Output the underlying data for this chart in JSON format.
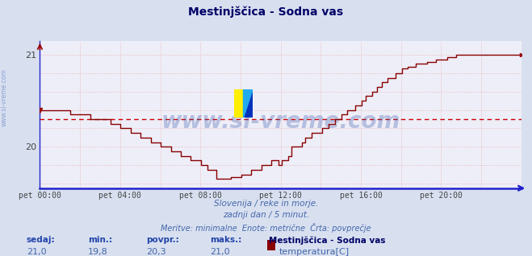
{
  "title": "Mestinjščica - Sodna vas",
  "subtitle1": "Slovenija / reke in morje.",
  "subtitle2": "zadnji dan / 5 minut.",
  "subtitle3": "Meritve: minimalne  Enote: metrične  Črta: povprečje",
  "legend_station": "Mestinjščica - Sodna vas",
  "legend_param": "temperatura[C]",
  "label_sedaj": "sedaj:",
  "label_min": "min.:",
  "label_povpr": "povpr.:",
  "label_maks": "maks.:",
  "val_sedaj": "21,0",
  "val_min": "19,8",
  "val_povpr": "20,3",
  "val_maks": "21,0",
  "avg_value": 20.3,
  "y_min": 19.55,
  "y_max": 21.15,
  "y_ticks": [
    20,
    21
  ],
  "x_ticks": [
    0,
    4,
    8,
    12,
    16,
    20
  ],
  "x_labels": [
    "pet 00:00",
    "pet 04:00",
    "pet 08:00",
    "pet 12:00",
    "pet 16:00",
    "pet 20:00"
  ],
  "line_color": "#880000",
  "avg_line_color": "#cc0000",
  "grid_color": "#e8b0b0",
  "bg_color": "#d8e0f0",
  "plot_bg_color": "#eeeef8",
  "axis_color": "#2222cc",
  "title_color": "#000066",
  "subtitle_color": "#4466aa",
  "label_color": "#2244aa",
  "value_color": "#4466aa",
  "watermark_text": "www.si-vreme.com",
  "watermark_color": "#3355aa",
  "left_label": "www.si-vreme.com"
}
